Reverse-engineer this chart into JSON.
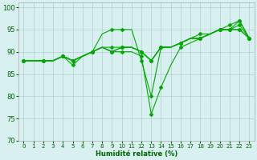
{
  "xlabel": "Humidité relative (%)",
  "background_color": "#d8f0f0",
  "grid_color": "#b0cece",
  "line_color": "#00aa00",
  "ylim": [
    70,
    101
  ],
  "xlim": [
    -0.5,
    23.5
  ],
  "yticks": [
    70,
    75,
    80,
    85,
    90,
    95,
    100
  ],
  "xticks": [
    0,
    1,
    2,
    3,
    4,
    5,
    6,
    7,
    8,
    9,
    10,
    11,
    12,
    13,
    14,
    15,
    16,
    17,
    18,
    19,
    20,
    21,
    22,
    23
  ],
  "series": [
    [
      88,
      88,
      88,
      88,
      89,
      87,
      89,
      90,
      94,
      95,
      95,
      95,
      88,
      80,
      91,
      91,
      92,
      93,
      93,
      94,
      95,
      95,
      97,
      93
    ],
    [
      88,
      88,
      88,
      88,
      89,
      88,
      89,
      90,
      91,
      90,
      90,
      90,
      89,
      76,
      82,
      87,
      91,
      92,
      93,
      94,
      95,
      96,
      97,
      93
    ],
    [
      88,
      88,
      88,
      88,
      89,
      88,
      89,
      90,
      91,
      90,
      91,
      91,
      90,
      88,
      91,
      91,
      92,
      93,
      93,
      94,
      95,
      95,
      95,
      93
    ],
    [
      88,
      88,
      88,
      88,
      89,
      88,
      89,
      90,
      91,
      90,
      91,
      91,
      90,
      88,
      91,
      91,
      92,
      93,
      93,
      94,
      95,
      95,
      95,
      93
    ],
    [
      88,
      88,
      88,
      88,
      89,
      88,
      89,
      90,
      91,
      91,
      91,
      91,
      90,
      88,
      91,
      91,
      92,
      93,
      94,
      94,
      95,
      95,
      96,
      93
    ]
  ],
  "marker_indices": [
    0,
    2,
    4,
    5,
    7,
    9,
    10,
    12,
    13,
    14,
    16,
    18,
    20,
    21,
    22,
    23
  ]
}
